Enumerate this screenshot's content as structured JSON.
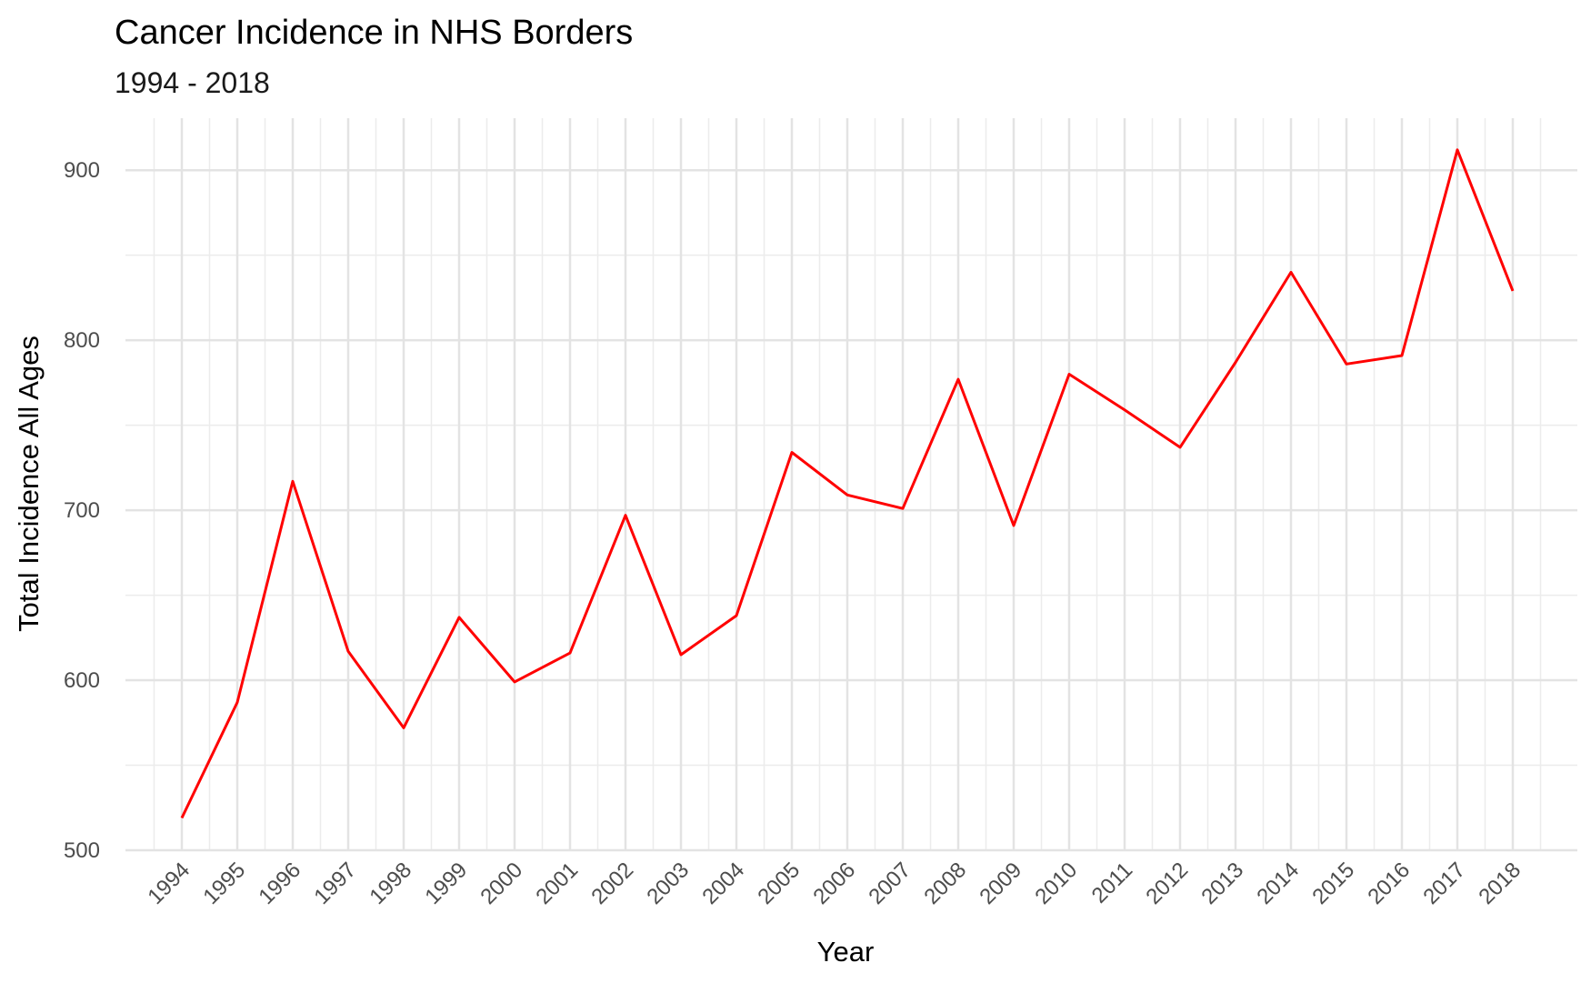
{
  "chart_data": {
    "type": "line",
    "title": "Cancer Incidence in NHS Borders",
    "subtitle": "1994 - 2018",
    "xlabel": "Year",
    "ylabel": "Total Incidence All Ages",
    "ylim": [
      500,
      930
    ],
    "yticks": [
      500,
      600,
      700,
      800,
      900
    ],
    "grid": true,
    "line_color": "#ff0000",
    "categories": [
      "1994",
      "1995",
      "1996",
      "1997",
      "1998",
      "1999",
      "2000",
      "2001",
      "2002",
      "2003",
      "2004",
      "2005",
      "2006",
      "2007",
      "2008",
      "2009",
      "2010",
      "2011",
      "2012",
      "2013",
      "2014",
      "2015",
      "2016",
      "2017",
      "2018"
    ],
    "series": [
      {
        "name": "Total Incidence All Ages",
        "values": [
          519,
          587,
          717,
          617,
          572,
          637,
          599,
          616,
          697,
          615,
          638,
          734,
          709,
          701,
          777,
          691,
          780,
          759,
          737,
          787,
          840,
          786,
          791,
          912,
          829
        ]
      }
    ]
  }
}
